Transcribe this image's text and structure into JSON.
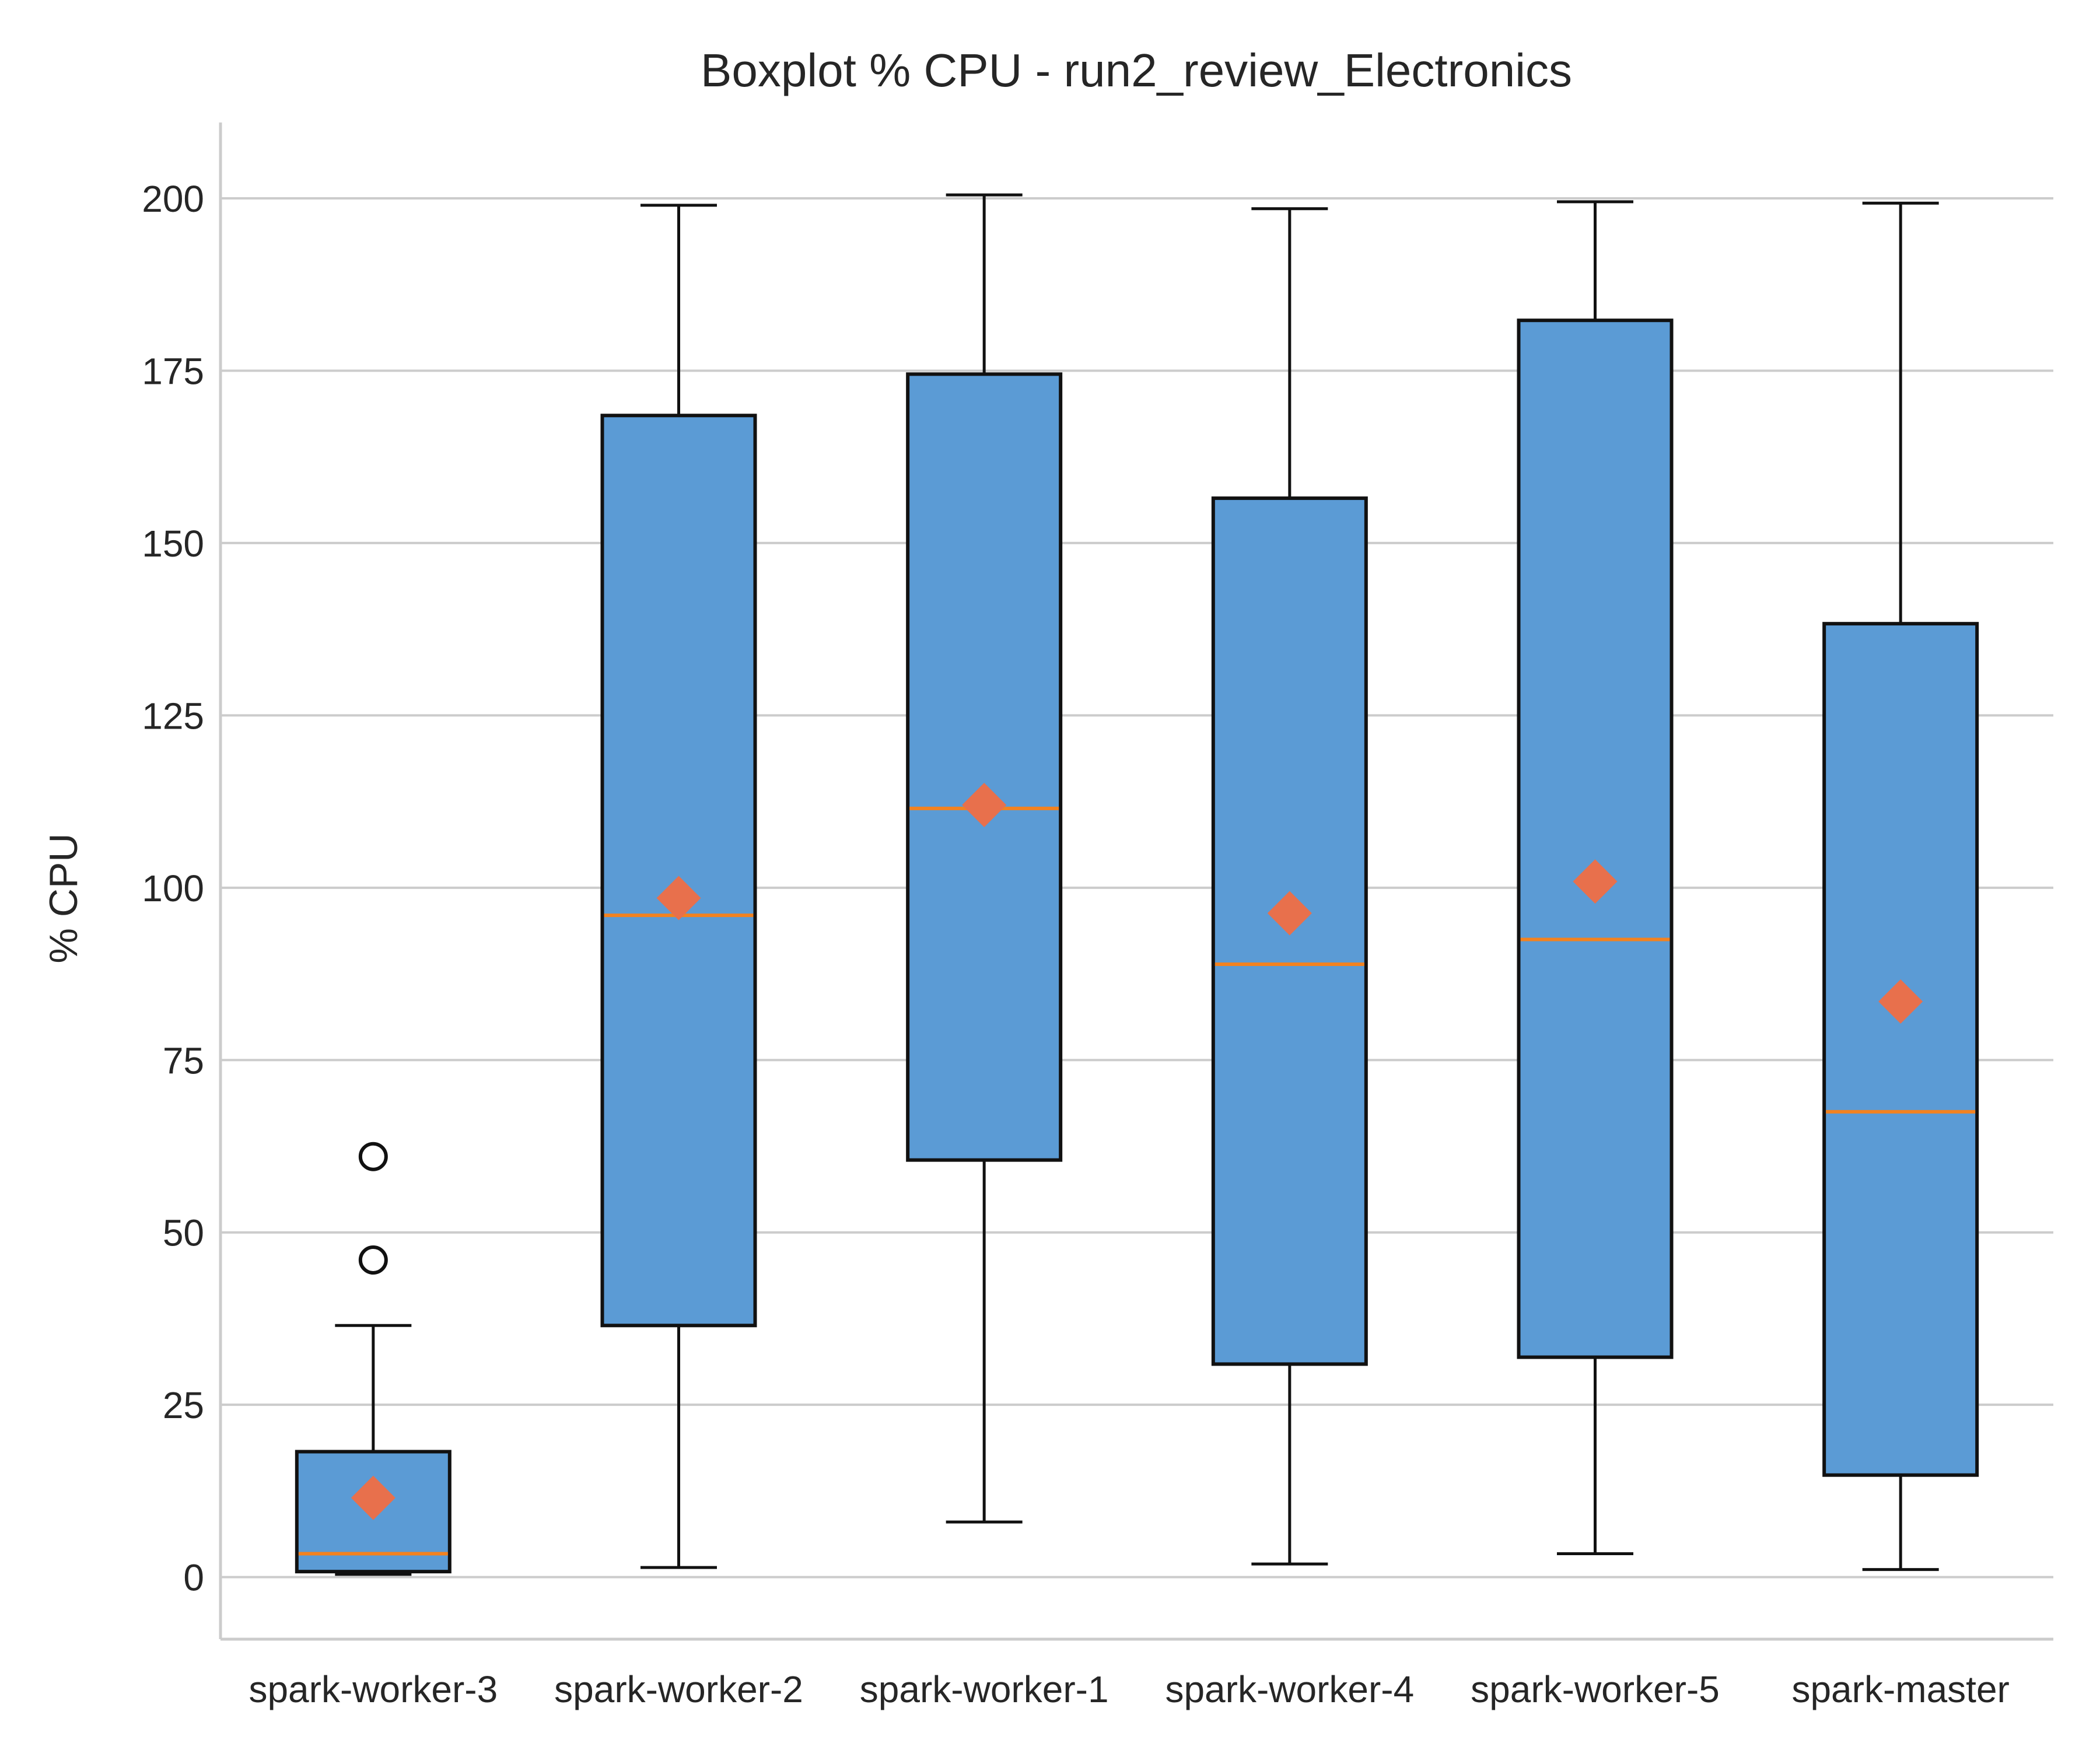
{
  "colors": {
    "box_fill": "#5B9BD5",
    "box_edge": "#111111",
    "median": "#F28220",
    "mean_marker": "#E8704C",
    "grid": "#CCCCCC",
    "axis": "#CCCCCC",
    "whisker": "#111111",
    "flier_edge": "#111111"
  },
  "chart_data": {
    "type": "boxplot",
    "title": "Boxplot % CPU - run2_review_Electronics",
    "ylabel": "% CPU",
    "xlabel": "",
    "ylim": [
      -9,
      211
    ],
    "yticks": [
      0,
      25,
      50,
      75,
      100,
      125,
      150,
      175,
      200
    ],
    "grid": "horizontal",
    "categories": [
      "spark-worker-3",
      "spark-worker-2",
      "spark-worker-1",
      "spark-worker-4",
      "spark-worker-5",
      "spark-master"
    ],
    "boxes": [
      {
        "whislo": 0.4,
        "q1": 0.8,
        "med": 3.4,
        "q3": 18.2,
        "whishi": 36.5,
        "mean": 11.5,
        "fliers": [
          46.0,
          61.0
        ]
      },
      {
        "whislo": 1.4,
        "q1": 36.5,
        "med": 96.0,
        "q3": 168.5,
        "whishi": 199.0,
        "mean": 98.5,
        "fliers": []
      },
      {
        "whislo": 8.0,
        "q1": 60.5,
        "med": 111.5,
        "q3": 174.5,
        "whishi": 200.5,
        "mean": 112.0,
        "fliers": []
      },
      {
        "whislo": 1.9,
        "q1": 30.9,
        "med": 88.9,
        "q3": 156.5,
        "whishi": 198.5,
        "mean": 96.3,
        "fliers": []
      },
      {
        "whislo": 3.4,
        "q1": 31.9,
        "med": 92.5,
        "q3": 182.3,
        "whishi": 199.5,
        "mean": 100.9,
        "fliers": []
      },
      {
        "whislo": 1.1,
        "q1": 14.8,
        "med": 67.5,
        "q3": 138.3,
        "whishi": 199.3,
        "mean": 83.5,
        "fliers": []
      }
    ]
  }
}
